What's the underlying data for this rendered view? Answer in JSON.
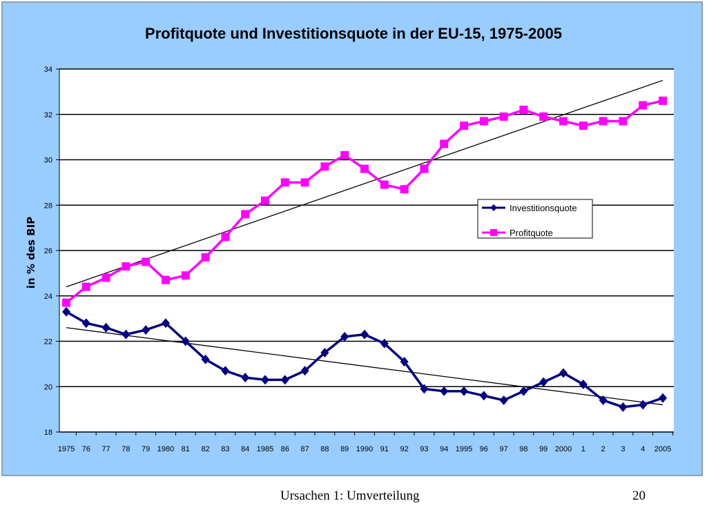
{
  "footer": {
    "text": "Ursachen 1: Umverteilung",
    "page": "20"
  },
  "colors": {
    "background": "#99ccff",
    "plot_area": "#ffffff",
    "investition": "#000080",
    "profit": "#ff00ff",
    "trend": "#000000"
  },
  "chart_data": {
    "type": "line",
    "title": "Profitquote und Investitionsquote in der EU-15, 1975-2005",
    "xlabel": "",
    "ylabel": "in % des BIP",
    "ylim": [
      18,
      34
    ],
    "yticks": [
      "18",
      "20",
      "22",
      "24",
      "26",
      "28",
      "30",
      "32",
      "34"
    ],
    "grid": true,
    "legend_position": "right",
    "categories": [
      "1975",
      "76",
      "77",
      "78",
      "79",
      "1980",
      "81",
      "82",
      "83",
      "84",
      "1985",
      "86",
      "87",
      "88",
      "89",
      "1990",
      "91",
      "92",
      "93",
      "94",
      "1995",
      "96",
      "97",
      "98",
      "99",
      "2000",
      "1",
      "2",
      "3",
      "4",
      "2005"
    ],
    "series": [
      {
        "name": "Investitionsquote",
        "marker": "diamond",
        "values": [
          23.3,
          22.8,
          22.6,
          22.3,
          22.5,
          22.8,
          22.0,
          21.2,
          20.7,
          20.4,
          20.3,
          20.3,
          20.7,
          21.5,
          22.2,
          22.3,
          21.9,
          21.1,
          19.9,
          19.8,
          19.8,
          19.6,
          19.4,
          19.8,
          20.2,
          20.6,
          20.1,
          19.4,
          19.1,
          19.2,
          19.5
        ],
        "trend": [
          22.6,
          19.2
        ]
      },
      {
        "name": "Profitquote",
        "marker": "square",
        "values": [
          23.7,
          24.4,
          24.8,
          25.3,
          25.5,
          24.7,
          24.9,
          25.7,
          26.6,
          27.6,
          28.2,
          29.0,
          29.0,
          29.7,
          30.2,
          29.6,
          28.9,
          28.7,
          29.6,
          30.7,
          31.5,
          31.7,
          31.9,
          32.2,
          31.9,
          31.7,
          31.5,
          31.7,
          31.7,
          32.4,
          32.6
        ],
        "trend": [
          24.4,
          33.5
        ]
      }
    ]
  }
}
